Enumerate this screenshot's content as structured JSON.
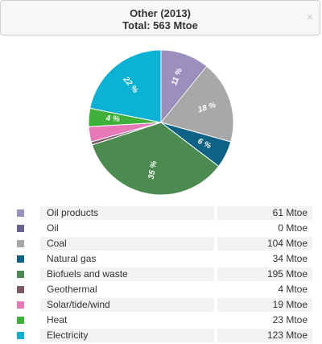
{
  "header": {
    "title": "Other (2013)",
    "subtitle": "Total: 563 Mtoe",
    "close_icon": "×"
  },
  "chart_data": {
    "type": "pie",
    "title": "Other (2013)",
    "subtitle": "Total: 563 Mtoe",
    "unit": "Mtoe",
    "slices": [
      {
        "name": "Oil products",
        "value": 61,
        "display": "61 Mtoe",
        "color": "#9b8fbd",
        "label": "11 %"
      },
      {
        "name": "Oil",
        "value": 0,
        "display": "0 Mtoe",
        "color": "#6b6190",
        "label": ""
      },
      {
        "name": "Coal",
        "value": 104,
        "display": "104 Mtoe",
        "color": "#a8a8a8",
        "label": "18 %"
      },
      {
        "name": "Natural gas",
        "value": 34,
        "display": "34 Mtoe",
        "color": "#0d6285",
        "label": "6 %"
      },
      {
        "name": "Biofuels and waste",
        "value": 195,
        "display": "195 Mtoe",
        "color": "#4b8b50",
        "label": "35 %"
      },
      {
        "name": "Geothermal",
        "value": 4,
        "display": "4 Mtoe",
        "color": "#7c5a66",
        "label": ""
      },
      {
        "name": "Solar/tide/wind",
        "value": 19,
        "display": "19 Mtoe",
        "color": "#e879b8",
        "label": ""
      },
      {
        "name": "Heat",
        "value": 23,
        "display": "23 Mtoe",
        "color": "#3fb13a",
        "label": "4 %"
      },
      {
        "name": "Electricity",
        "value": 123,
        "display": "123 Mtoe",
        "color": "#0bb2d4",
        "label": "22 %"
      }
    ]
  }
}
